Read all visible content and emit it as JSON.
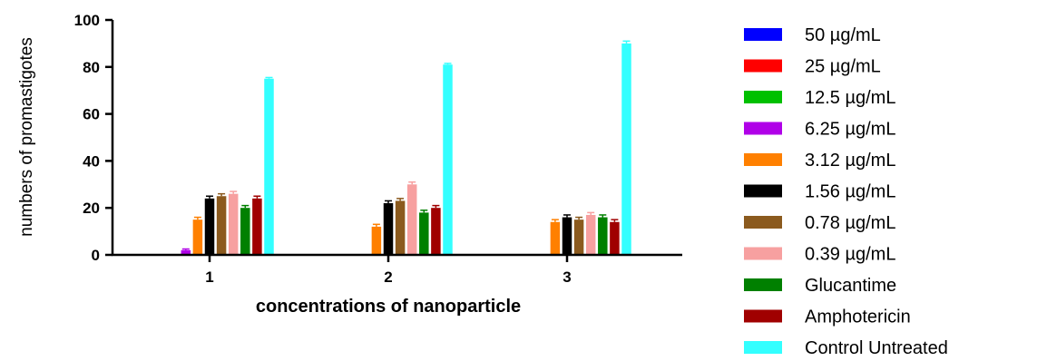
{
  "chart_data": {
    "type": "bar",
    "title": "",
    "xlabel": "concentrations of nanoparticle",
    "ylabel": "numbers of promastigotes",
    "categories": [
      "1",
      "2",
      "3"
    ],
    "ylim": [
      0,
      100
    ],
    "yticks": [
      "0",
      "20",
      "40",
      "60",
      "80",
      "100"
    ],
    "grid": false,
    "legend_position": "right",
    "series": [
      {
        "name": "50 µg/mL",
        "color": "#0000ff",
        "values": [
          0,
          0,
          0
        ],
        "errors": [
          0,
          0,
          0
        ]
      },
      {
        "name": "25 µg/mL",
        "color": "#ff0000",
        "values": [
          0,
          0,
          0
        ],
        "errors": [
          0,
          0,
          0
        ]
      },
      {
        "name": "12.5 µg/mL",
        "color": "#00c000",
        "values": [
          0,
          0,
          0
        ],
        "errors": [
          0,
          0,
          0
        ]
      },
      {
        "name": "6.25 µg/mL",
        "color": "#b000e8",
        "values": [
          2,
          0,
          0
        ],
        "errors": [
          0.5,
          0,
          0
        ]
      },
      {
        "name": "3.12 µg/mL",
        "color": "#ff8000",
        "values": [
          15,
          12,
          14
        ],
        "errors": [
          1,
          1,
          1
        ]
      },
      {
        "name": "1.56 µg/mL",
        "color": "#000000",
        "values": [
          24,
          22,
          16
        ],
        "errors": [
          1,
          1,
          1
        ]
      },
      {
        "name": "0.78 µg/mL",
        "color": "#8b5a1e",
        "values": [
          25,
          23,
          15
        ],
        "errors": [
          1,
          1,
          1
        ]
      },
      {
        "name": "0.39 µg/mL",
        "color": "#f7a0a0",
        "values": [
          26,
          30,
          17
        ],
        "errors": [
          1,
          1,
          1
        ]
      },
      {
        "name": "Glucantime",
        "color": "#008000",
        "values": [
          20,
          18,
          16
        ],
        "errors": [
          1,
          1,
          1
        ]
      },
      {
        "name": "Amphotericin",
        "color": "#a00000",
        "values": [
          24,
          20,
          14
        ],
        "errors": [
          1,
          1,
          1
        ]
      },
      {
        "name": "Control Untreated",
        "color": "#33ffff",
        "values": [
          75,
          81,
          90
        ],
        "errors": [
          0.5,
          0.5,
          1
        ]
      }
    ]
  }
}
